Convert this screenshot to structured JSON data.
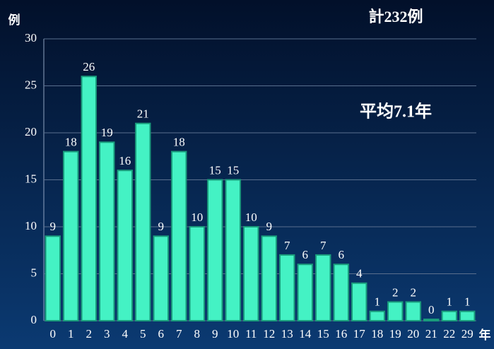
{
  "chart_data": {
    "type": "bar",
    "y_label": "例",
    "x_label": "年",
    "annotations": [
      "計232例",
      "平均7.1年"
    ],
    "categories": [
      "0",
      "1",
      "2",
      "3",
      "4",
      "5",
      "6",
      "7",
      "8",
      "9",
      "10",
      "11",
      "12",
      "13",
      "14",
      "15",
      "16",
      "17",
      "18",
      "19",
      "20",
      "21",
      "22",
      "29"
    ],
    "values": [
      9,
      18,
      26,
      19,
      16,
      21,
      9,
      18,
      10,
      15,
      15,
      10,
      9,
      7,
      6,
      7,
      6,
      4,
      1,
      2,
      2,
      0,
      1,
      1
    ],
    "color": "#44f2c4",
    "ylim": [
      0,
      30
    ],
    "yticks": [
      0,
      5,
      10,
      15,
      20,
      25,
      30
    ],
    "grid": true
  }
}
